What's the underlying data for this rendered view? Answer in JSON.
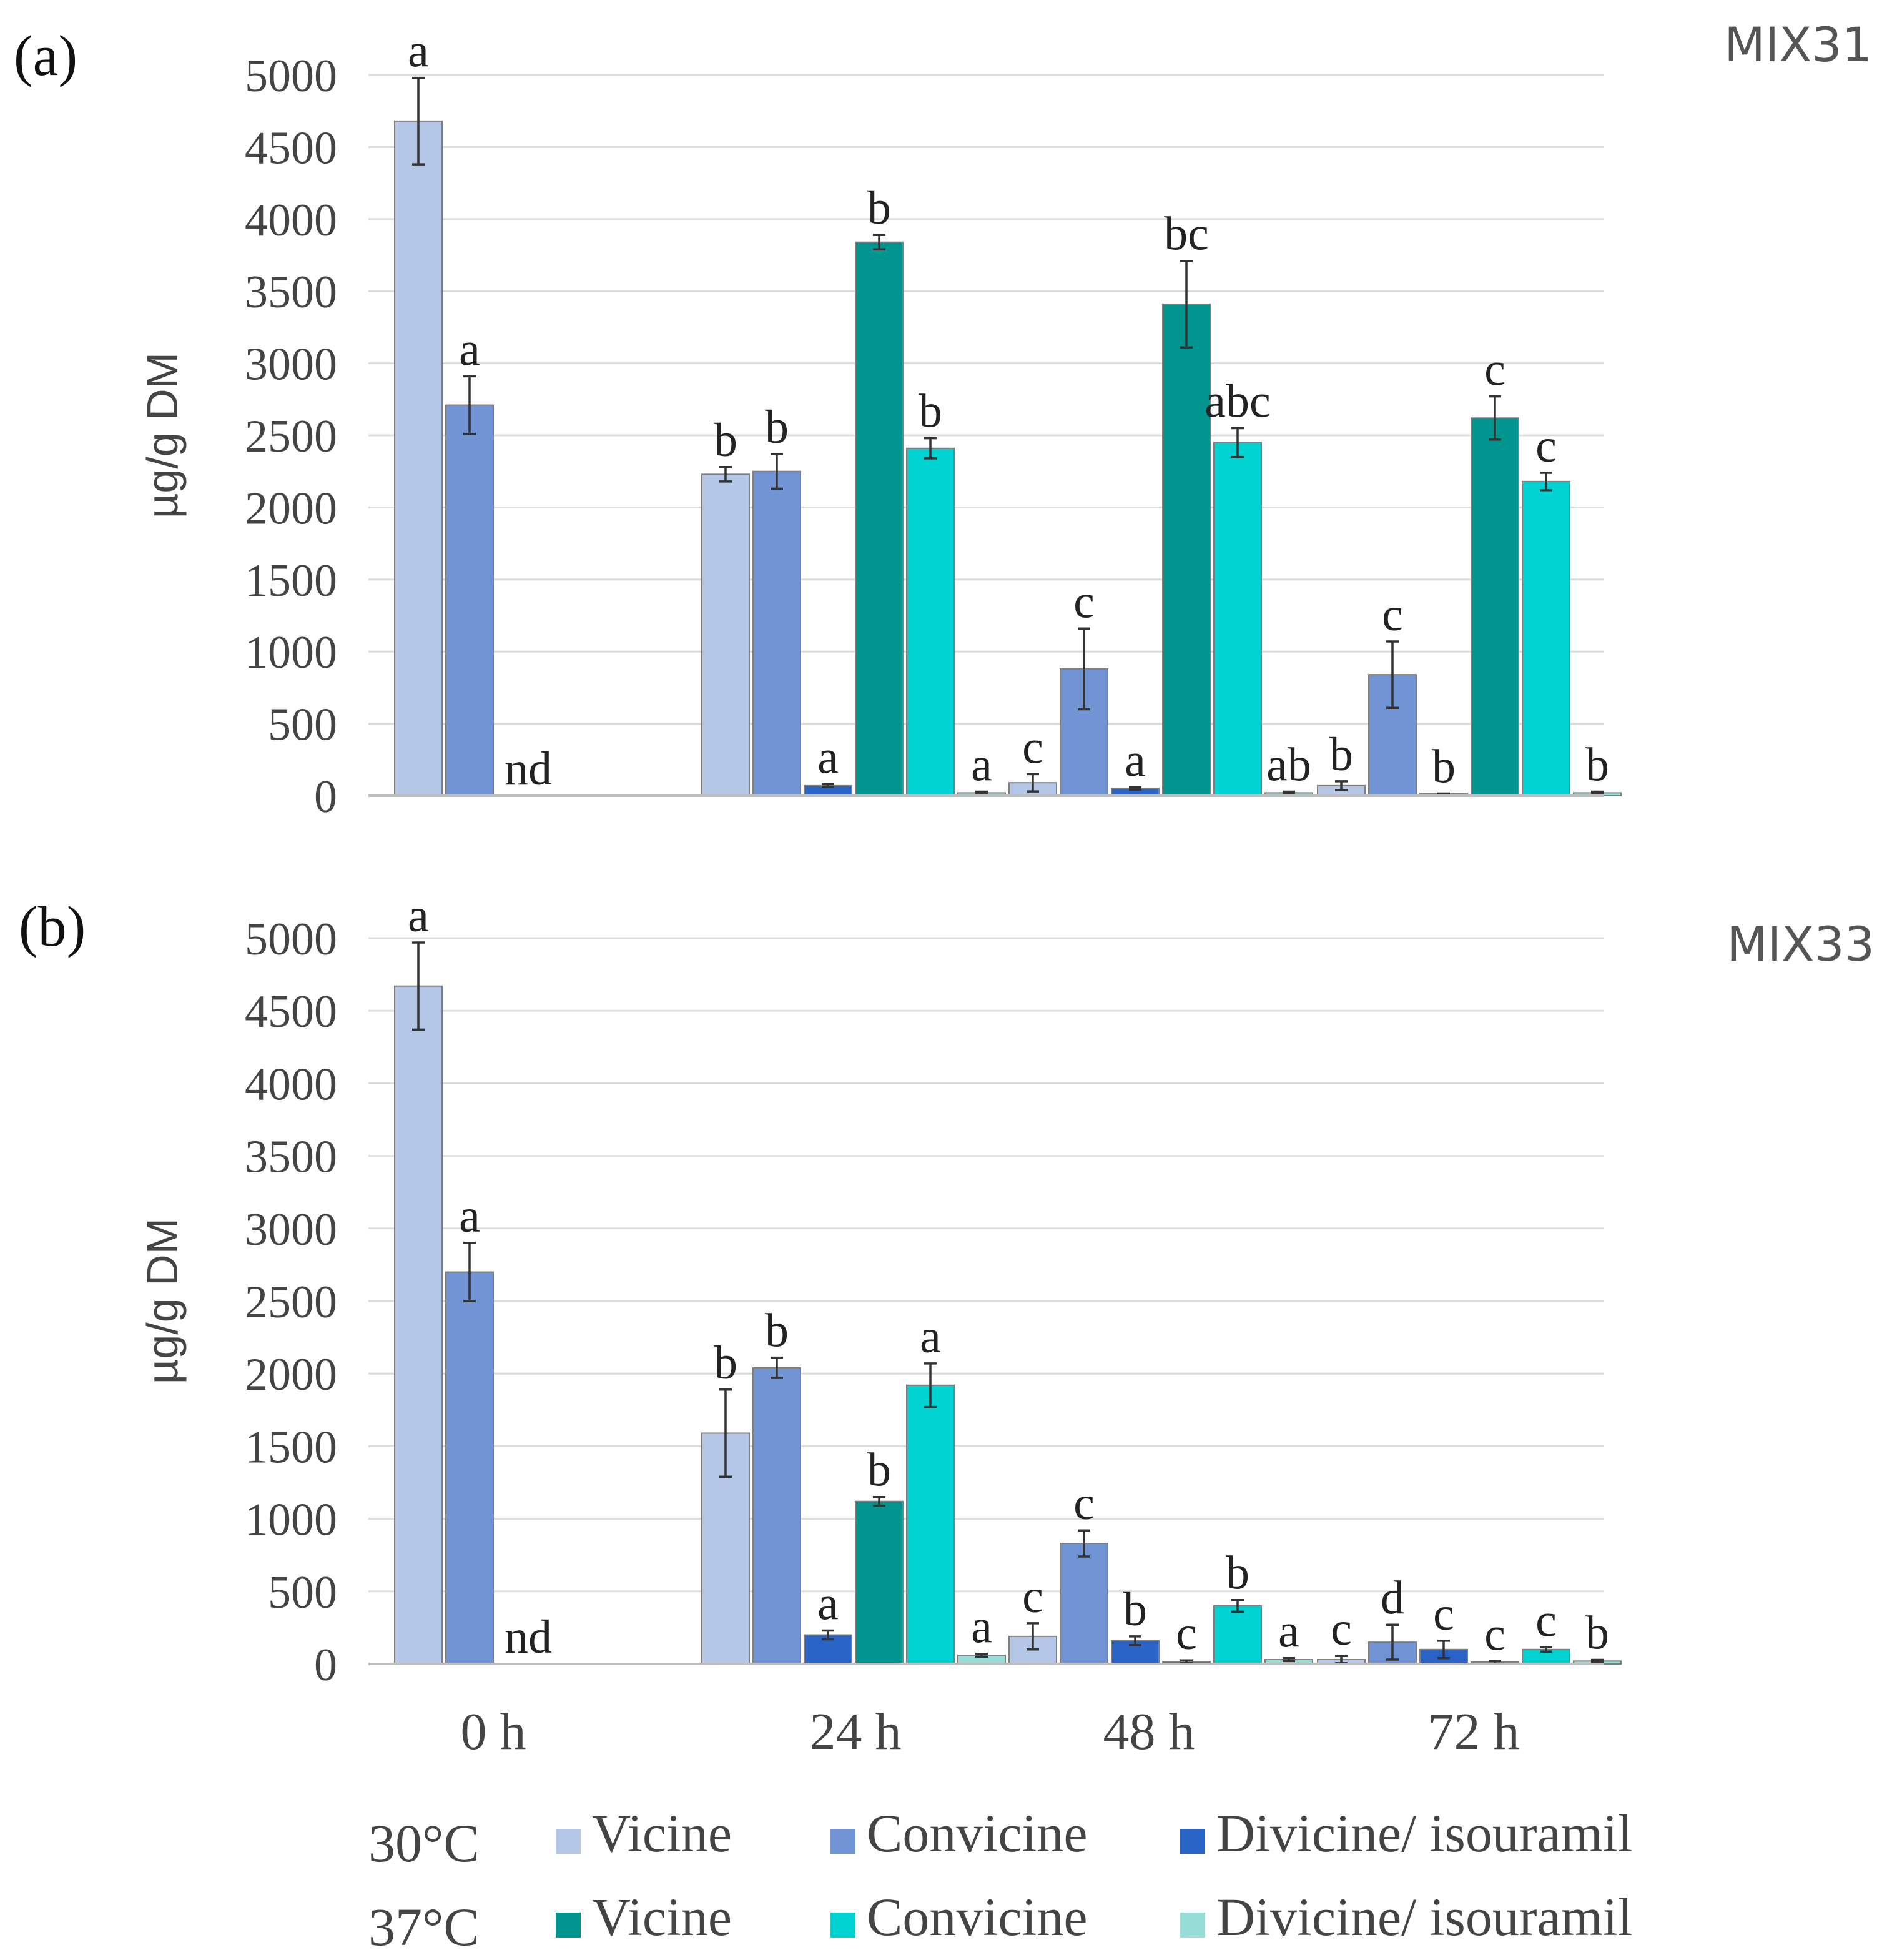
{
  "chart_data": [
    {
      "type": "bar",
      "panel": "(a)",
      "title": "MIX31",
      "ylabel": "µg/g DM",
      "ylim": [
        0,
        5000
      ],
      "yticks": [
        "0",
        "500",
        "1000",
        "1500",
        "2000",
        "2500",
        "3000",
        "3500",
        "4000",
        "4500",
        "5000"
      ],
      "categories": [
        "0 h",
        "24 h",
        "48 h",
        "72 h"
      ],
      "series": [
        {
          "name": "30°C Vicine",
          "color": "#b4c7e7",
          "values": [
            4680,
            2230,
            90,
            70
          ],
          "errors": [
            300,
            50,
            60,
            30
          ],
          "labels": [
            "a",
            "b",
            "c",
            "b"
          ]
        },
        {
          "name": "30°C Convicine",
          "color": "#7094d4",
          "values": [
            2710,
            2250,
            880,
            840
          ],
          "errors": [
            200,
            120,
            280,
            230
          ],
          "labels": [
            "a",
            "b",
            "c",
            "c"
          ]
        },
        {
          "name": "30°C Divicine/ isouramil",
          "color": "#2a63c6",
          "values": [
            null,
            70,
            50,
            10
          ],
          "errors": [
            0,
            10,
            8,
            5
          ],
          "labels": [
            "nd",
            "a",
            "a",
            "b"
          ]
        },
        {
          "name": "37°C Vicine",
          "color": "#00968f",
          "values": [
            null,
            3840,
            3410,
            2620
          ],
          "errors": [
            0,
            50,
            300,
            150
          ],
          "labels": [
            "",
            "b",
            "bc",
            "c"
          ]
        },
        {
          "name": "37°C Convicine",
          "color": "#00d2d2",
          "values": [
            null,
            2410,
            2450,
            2180
          ],
          "errors": [
            0,
            70,
            100,
            60
          ],
          "labels": [
            "",
            "b",
            "abc",
            "c"
          ]
        },
        {
          "name": "37°C Divicine/ isouramil",
          "color": "#96dcd7",
          "values": [
            null,
            20,
            20,
            20
          ],
          "errors": [
            0,
            8,
            8,
            8
          ],
          "labels": [
            "",
            "a",
            "ab",
            "b"
          ]
        }
      ]
    },
    {
      "type": "bar",
      "panel": "(b)",
      "title": "MIX33",
      "ylabel": "µg/g DM",
      "ylim": [
        0,
        5000
      ],
      "yticks": [
        "0",
        "500",
        "1000",
        "1500",
        "2000",
        "2500",
        "3000",
        "3500",
        "4000",
        "4500",
        "5000"
      ],
      "categories": [
        "0 h",
        "24 h",
        "48 h",
        "72 h"
      ],
      "series": [
        {
          "name": "30°C Vicine",
          "color": "#b4c7e7",
          "values": [
            4670,
            1590,
            190,
            30
          ],
          "errors": [
            300,
            300,
            90,
            25
          ],
          "labels": [
            "a",
            "b",
            "c",
            "c"
          ]
        },
        {
          "name": "30°C Convicine",
          "color": "#7094d4",
          "values": [
            2700,
            2040,
            830,
            150
          ],
          "errors": [
            200,
            70,
            90,
            120
          ],
          "labels": [
            "a",
            "b",
            "c",
            "d"
          ]
        },
        {
          "name": "30°C Divicine/ isouramil",
          "color": "#2a63c6",
          "values": [
            null,
            200,
            160,
            100
          ],
          "errors": [
            0,
            30,
            30,
            60
          ],
          "labels": [
            "nd",
            "a",
            "b",
            "c"
          ]
        },
        {
          "name": "37°C Vicine",
          "color": "#00968f",
          "values": [
            null,
            1120,
            15,
            10
          ],
          "errors": [
            0,
            30,
            10,
            10
          ],
          "labels": [
            "",
            "b",
            "c",
            "c"
          ]
        },
        {
          "name": "37°C Convicine",
          "color": "#00d2d2",
          "values": [
            null,
            1920,
            400,
            100
          ],
          "errors": [
            0,
            150,
            40,
            15
          ],
          "labels": [
            "",
            "a",
            "b",
            "c"
          ]
        },
        {
          "name": "37°C Divicine/ isouramil",
          "color": "#96dcd7",
          "values": [
            null,
            60,
            30,
            20
          ],
          "errors": [
            0,
            10,
            10,
            8
          ],
          "labels": [
            "",
            "a",
            "a",
            "b"
          ]
        }
      ]
    }
  ],
  "legend": {
    "rows": [
      {
        "temp": "30°C",
        "items": [
          {
            "label": "Vicine",
            "color": "#b4c7e7"
          },
          {
            "label": "Convicine",
            "color": "#7094d4"
          },
          {
            "label": "Divicine/ isouramil",
            "color": "#2a63c6"
          }
        ]
      },
      {
        "temp": "37°C",
        "items": [
          {
            "label": "Vicine",
            "color": "#00968f"
          },
          {
            "label": "Convicine",
            "color": "#00d2d2"
          },
          {
            "label": "Divicine/ isouramil",
            "color": "#96dcd7"
          }
        ]
      }
    ]
  }
}
